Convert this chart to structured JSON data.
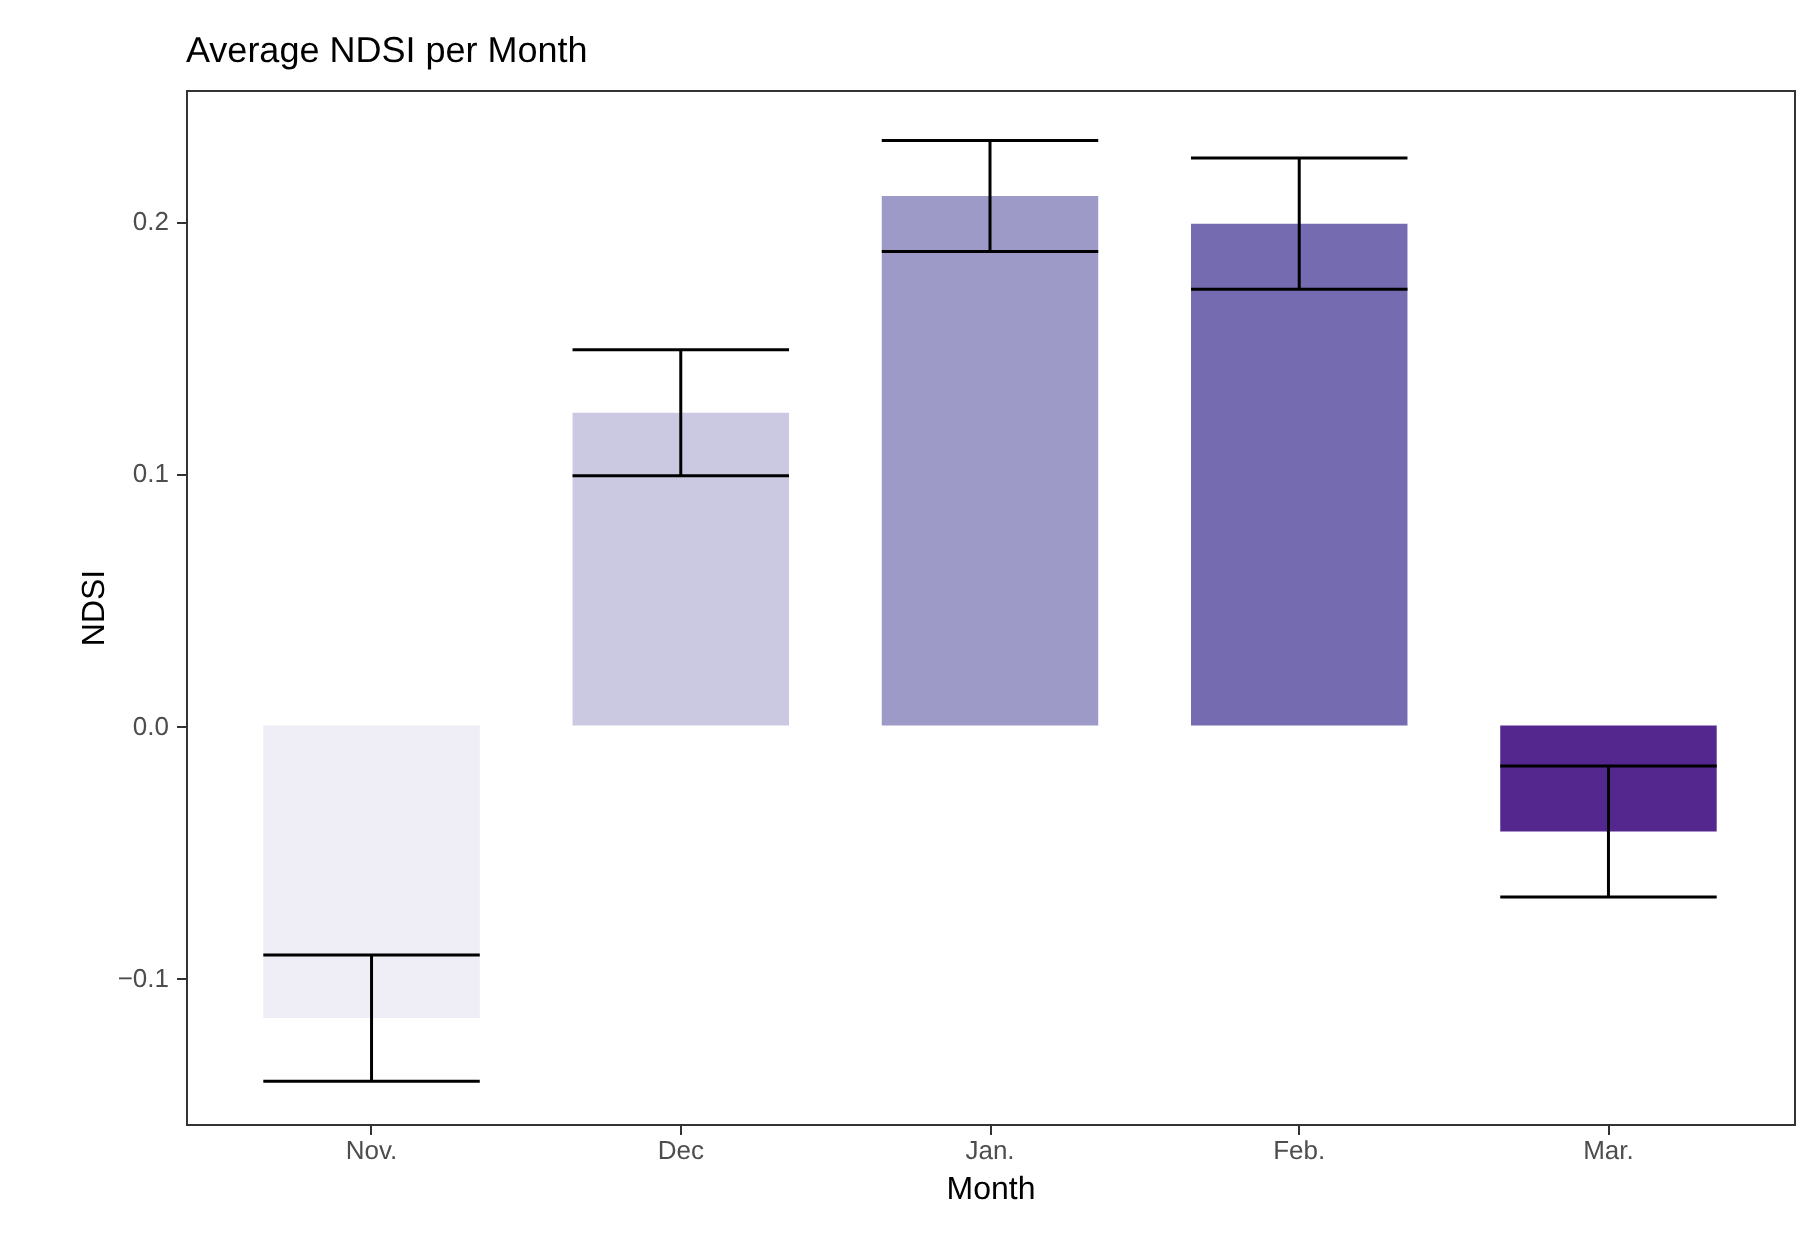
{
  "chart_data": {
    "type": "bar",
    "title": "Average NDSI per Month",
    "xlabel": "Month",
    "ylabel": "NDSI",
    "categories": [
      "Nov.",
      "Dec",
      "Jan.",
      "Feb.",
      "Mar."
    ],
    "values": [
      -0.116,
      0.124,
      0.21,
      0.199,
      -0.042
    ],
    "errors": [
      0.025,
      0.025,
      0.022,
      0.026,
      0.026
    ],
    "colors": [
      "#efedf5",
      "#cbc9e2",
      "#9e9ac8",
      "#756bb1",
      "#54278f"
    ],
    "ylim": [
      -0.158,
      0.252
    ],
    "yticks": [
      {
        "value": -0.1,
        "label": "−0.1"
      },
      {
        "value": 0,
        "label": "0.0"
      },
      0.1,
      0.2
    ],
    "grid": false
  }
}
